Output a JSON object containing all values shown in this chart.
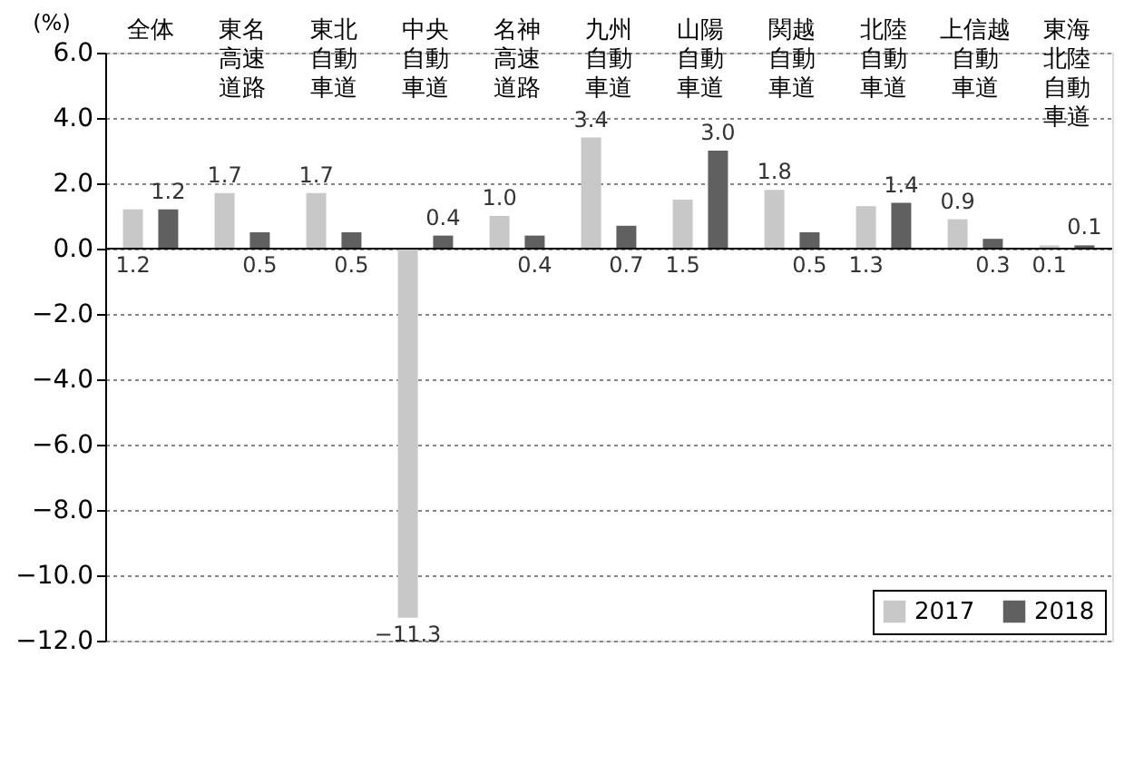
{
  "chart_data": {
    "type": "bar",
    "ylabel": "(%)",
    "categories": [
      "全体",
      "東名高速道路",
      "東北自動車道",
      "中央自動車道",
      "名神高速道路",
      "九州自動車道",
      "山陽自動車道",
      "関越自動車道",
      "北陸自動車道",
      "上信越自動車道",
      "東海北陸自動車道"
    ],
    "series": [
      {
        "name": "2017",
        "color": "#c8c8c8",
        "values": [
          1.2,
          1.7,
          1.7,
          -11.3,
          1.0,
          3.4,
          1.5,
          1.8,
          1.3,
          0.9,
          0.1
        ],
        "value_labels": [
          "1.2",
          "1.7",
          "1.7",
          "−11.3",
          "1.0",
          "3.4",
          "1.5",
          "1.8",
          "1.3",
          "0.9",
          "0.1"
        ]
      },
      {
        "name": "2018",
        "color": "#606060",
        "values": [
          1.2,
          0.5,
          0.5,
          0.4,
          0.4,
          0.7,
          3.0,
          0.5,
          1.4,
          0.3,
          0.1
        ],
        "value_labels": [
          "1.2",
          "0.5",
          "0.5",
          "0.4",
          "0.4",
          "0.7",
          "3.0",
          "0.5",
          "1.4",
          "0.3",
          "0.1"
        ]
      }
    ],
    "ylim": [
      -12.0,
      6.0
    ],
    "yticks": [
      {
        "value": -12,
        "label": "−12.0"
      },
      {
        "value": -10,
        "label": "−10.0"
      },
      {
        "value": -8,
        "label": "−8.0"
      },
      {
        "value": -6,
        "label": "−6.0"
      },
      {
        "value": -4,
        "label": "−4.0"
      },
      {
        "value": -2,
        "label": "−2.0"
      },
      {
        "value": 0,
        "label": "0.0"
      },
      {
        "value": 2,
        "label": "2.0"
      },
      {
        "value": 4,
        "label": "4.0"
      },
      {
        "value": 6,
        "label": "6.0"
      }
    ],
    "grid": "y",
    "legend": "bottom right"
  }
}
